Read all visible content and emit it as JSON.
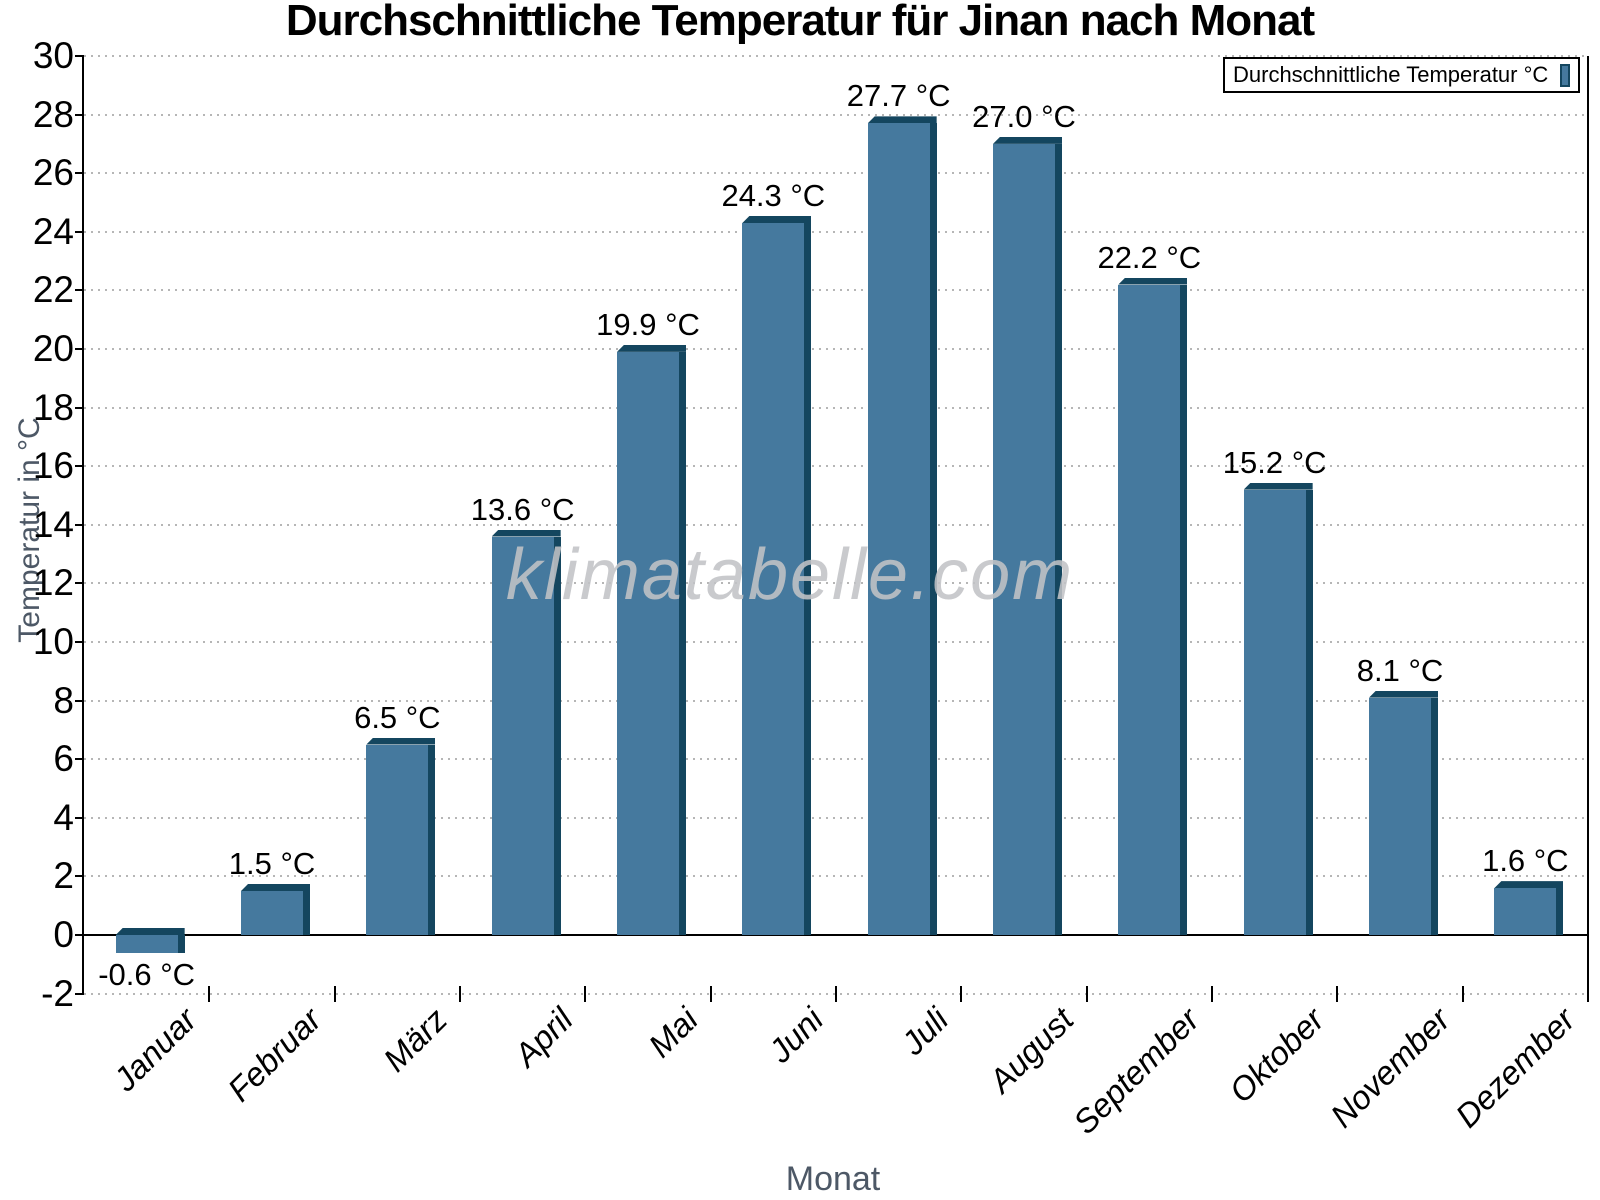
{
  "chart_data": {
    "type": "bar",
    "title": "Durchschnittliche Temperatur für Jinan nach Monat",
    "xlabel": "Monat",
    "ylabel": "Temperatur in °C",
    "categories": [
      "Januar",
      "Februar",
      "März",
      "April",
      "Mai",
      "Juni",
      "Juli",
      "August",
      "September",
      "Oktober",
      "November",
      "Dezember"
    ],
    "values": [
      -0.6,
      1.5,
      6.5,
      13.6,
      19.9,
      24.3,
      27.7,
      27.0,
      22.2,
      15.2,
      8.1,
      1.6
    ],
    "value_labels": [
      "-0.6 °C",
      "1.5 °C",
      "6.5 °C",
      "13.6 °C",
      "19.9 °C",
      "24.3 °C",
      "27.7 °C",
      "27.0 °C",
      "22.2 °C",
      "15.2 °C",
      "8.1 °C",
      "1.6 °C"
    ],
    "series": [
      {
        "name": "Durchschnittliche Temperatur °C",
        "values": [
          -0.6,
          1.5,
          6.5,
          13.6,
          19.9,
          24.3,
          27.7,
          27.0,
          22.2,
          15.2,
          8.1,
          1.6
        ]
      }
    ],
    "ylim": [
      -2,
      30
    ],
    "ytick_step": 2,
    "grid": "horizontal-dotted",
    "legend_position": "top-right",
    "bar_color": "#45799E",
    "bar_shadow_color": "#14465F"
  },
  "legend": {
    "label": "Durchschnittliche Temperatur °C"
  },
  "watermark": "klimatabelle.com"
}
